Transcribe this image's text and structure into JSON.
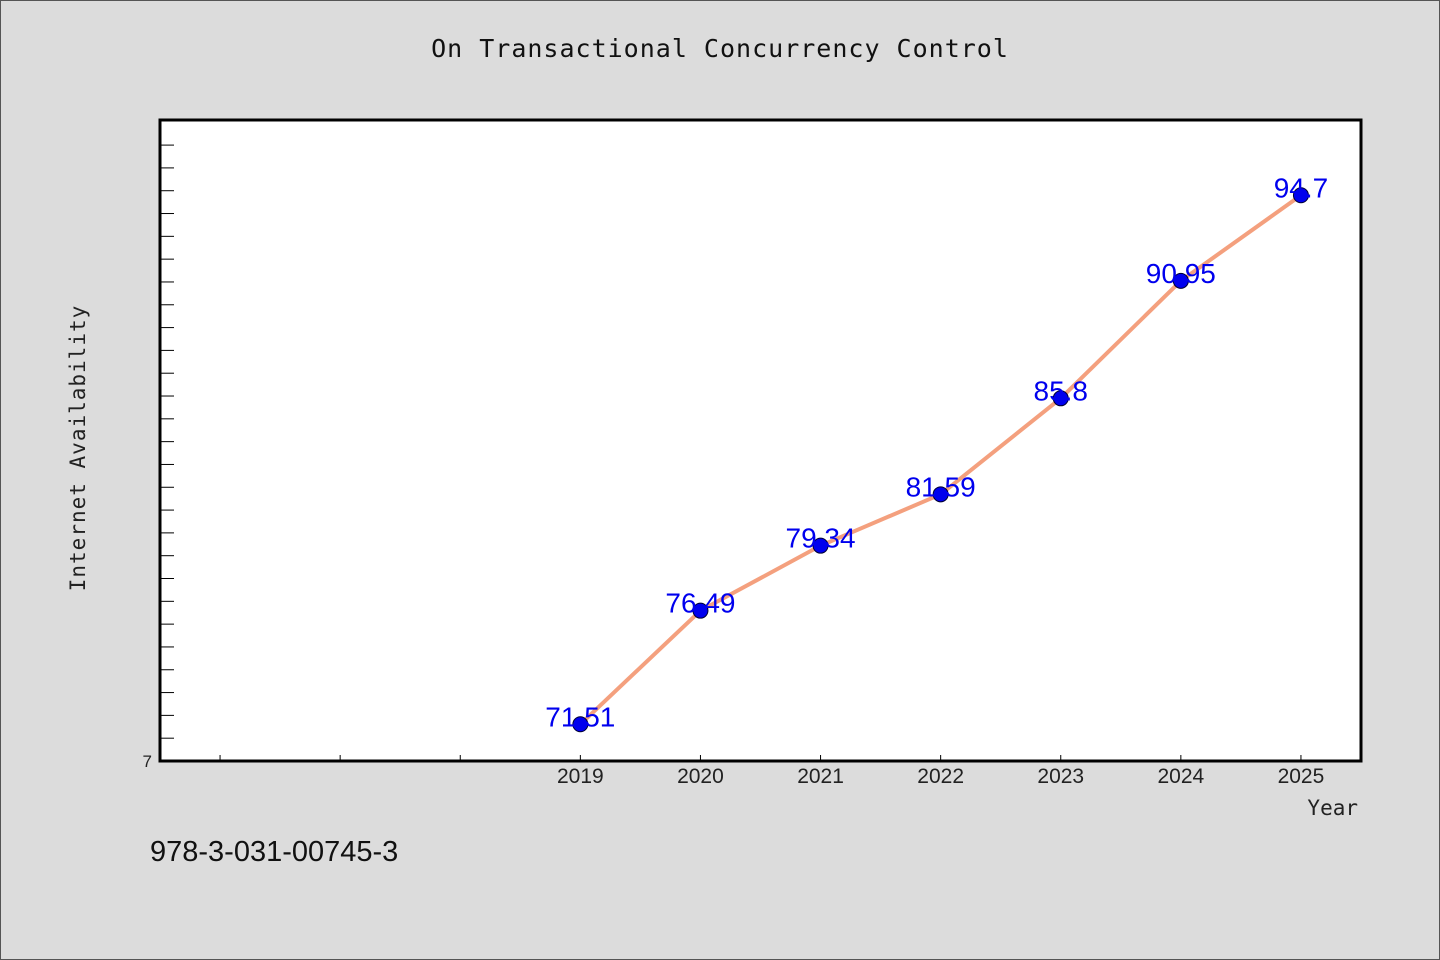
{
  "figure": {
    "footer_text": "978-3-031-00745-3"
  },
  "colors": {
    "background": "#dcdcdc",
    "plot_background": "#ffffff",
    "line": "#f4a07e",
    "marker": "#0000ee",
    "data_label": "#0000ee"
  },
  "chart_data": {
    "type": "line",
    "title": "On Transactional Concurrency Control",
    "xlabel": "Year",
    "ylabel": "Internet Availability",
    "categories": [
      "2019",
      "2020",
      "2021",
      "2022",
      "2023",
      "2024",
      "2025"
    ],
    "series": [
      {
        "values": [
          71.51,
          76.49,
          79.34,
          81.59,
          85.8,
          90.95,
          94.7
        ],
        "labels": [
          "71.51",
          "76.49",
          "79.34",
          "81.59",
          "85.8",
          "90.95",
          "94.7"
        ]
      }
    ],
    "xlim": [
      2015.5,
      2025.5
    ],
    "ylim": [
      69.9,
      98
    ],
    "y_scale": "linear",
    "y_tick_label": "7",
    "grid": false,
    "legend": "none"
  }
}
